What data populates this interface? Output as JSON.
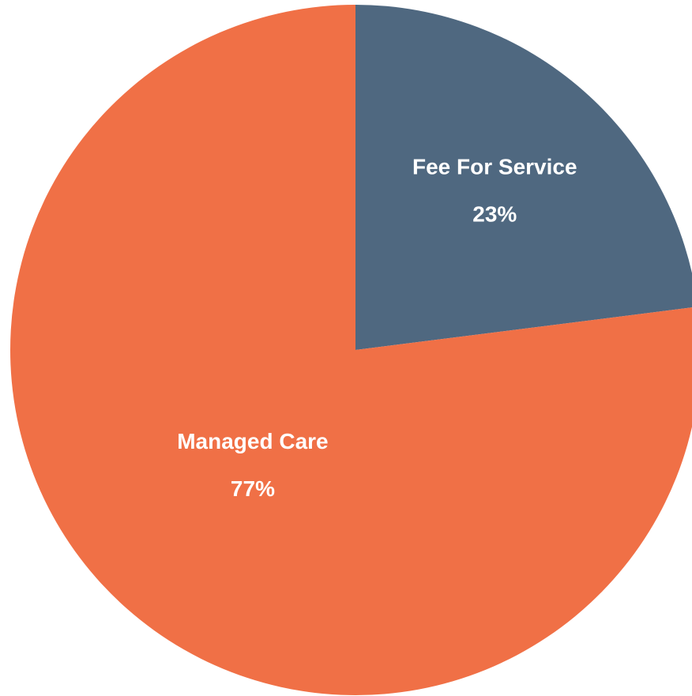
{
  "chart_data": {
    "type": "pie",
    "categories": [
      "Fee For Service",
      "Managed Care"
    ],
    "values": [
      23,
      77
    ],
    "value_labels": [
      "23%",
      "77%"
    ],
    "colors": [
      "#4f6880",
      "#f07046"
    ]
  }
}
